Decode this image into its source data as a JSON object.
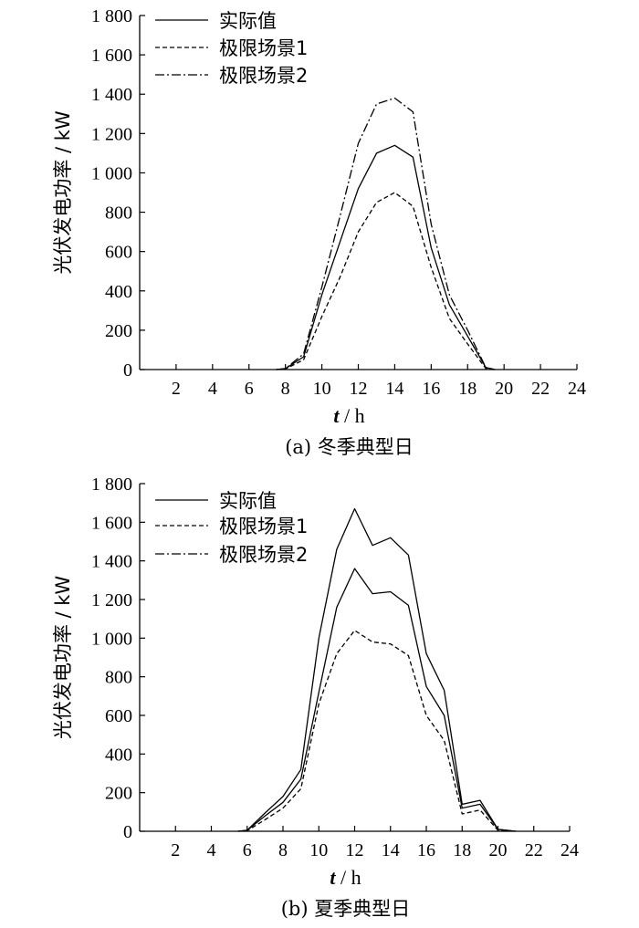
{
  "chart_data": [
    {
      "type": "line",
      "caption": "(a)  冬季典型日",
      "xlabel_var": "t",
      "xlabel_unit": " / h",
      "ylabel": "光伏发电功率 / kW",
      "xlim": [
        0,
        24
      ],
      "ylim": [
        0,
        1800
      ],
      "xticks": [
        2,
        4,
        6,
        8,
        10,
        12,
        14,
        16,
        18,
        20,
        22,
        24
      ],
      "yticks": [
        0,
        200,
        400,
        600,
        800,
        1000,
        1200,
        1400,
        1600,
        1800
      ],
      "ytick_labels": [
        "0",
        "200",
        "400",
        "600",
        "800",
        "1 000",
        "1 200",
        "1 400",
        "1 600",
        "1 800"
      ],
      "series": [
        {
          "name": "实际值",
          "style": "solid",
          "x": [
            7.5,
            8,
            9,
            10,
            11,
            12,
            13,
            14,
            15,
            16,
            17,
            18,
            19,
            19.5
          ],
          "y": [
            0,
            5,
            65,
            380,
            650,
            920,
            1100,
            1140,
            1080,
            620,
            330,
            170,
            10,
            0
          ]
        },
        {
          "name": "极限场景1",
          "style": "dashed",
          "x": [
            7.5,
            8,
            9,
            10,
            11,
            12,
            13,
            14,
            15,
            16,
            17,
            18,
            19,
            19.5
          ],
          "y": [
            0,
            3,
            50,
            270,
            470,
            700,
            850,
            900,
            830,
            520,
            260,
            130,
            5,
            0
          ]
        },
        {
          "name": "极限场景2",
          "style": "dashdot",
          "x": [
            7.5,
            8,
            9,
            10,
            11,
            12,
            13,
            14,
            15,
            16,
            17,
            18,
            19,
            19.5
          ],
          "y": [
            0,
            5,
            80,
            420,
            780,
            1150,
            1350,
            1380,
            1310,
            740,
            380,
            200,
            10,
            0
          ]
        }
      ]
    },
    {
      "type": "line",
      "caption": "(b)  夏季典型日",
      "xlabel_var": "t",
      "xlabel_unit": " / h",
      "ylabel": "光伏发电功率 / kW",
      "xlim": [
        0,
        24
      ],
      "ylim": [
        0,
        1800
      ],
      "xticks": [
        2,
        4,
        6,
        8,
        10,
        12,
        14,
        16,
        18,
        20,
        22,
        24
      ],
      "yticks": [
        0,
        200,
        400,
        600,
        800,
        1000,
        1200,
        1400,
        1600,
        1800
      ],
      "ytick_labels": [
        "0",
        "200",
        "400",
        "600",
        "800",
        "1 000",
        "1 200",
        "1 400",
        "1 600",
        "1 800"
      ],
      "series": [
        {
          "name": "实际值",
          "style": "solid",
          "x": [
            5.5,
            6,
            7,
            8,
            9,
            10,
            11,
            12,
            13,
            14,
            15,
            16,
            17,
            18,
            19,
            20,
            21
          ],
          "y": [
            0,
            5,
            80,
            150,
            270,
            720,
            1160,
            1360,
            1230,
            1240,
            1170,
            750,
            600,
            120,
            140,
            10,
            0
          ]
        },
        {
          "name": "极限场景1",
          "style": "dashed",
          "x": [
            5.5,
            6,
            7,
            8,
            9,
            10,
            11,
            12,
            13,
            14,
            15,
            16,
            17,
            18,
            19,
            20,
            21
          ],
          "y": [
            0,
            3,
            60,
            120,
            220,
            660,
            920,
            1040,
            980,
            970,
            910,
            600,
            470,
            90,
            110,
            5,
            0
          ]
        },
        {
          "name": "极限场景2",
          "style": "solid",
          "x": [
            5.5,
            6,
            7,
            8,
            9,
            10,
            11,
            12,
            13,
            14,
            15,
            16,
            17,
            18,
            19,
            20,
            21
          ],
          "y": [
            0,
            5,
            95,
            180,
            320,
            1000,
            1460,
            1670,
            1480,
            1520,
            1430,
            920,
            730,
            140,
            160,
            10,
            0
          ]
        }
      ]
    }
  ]
}
